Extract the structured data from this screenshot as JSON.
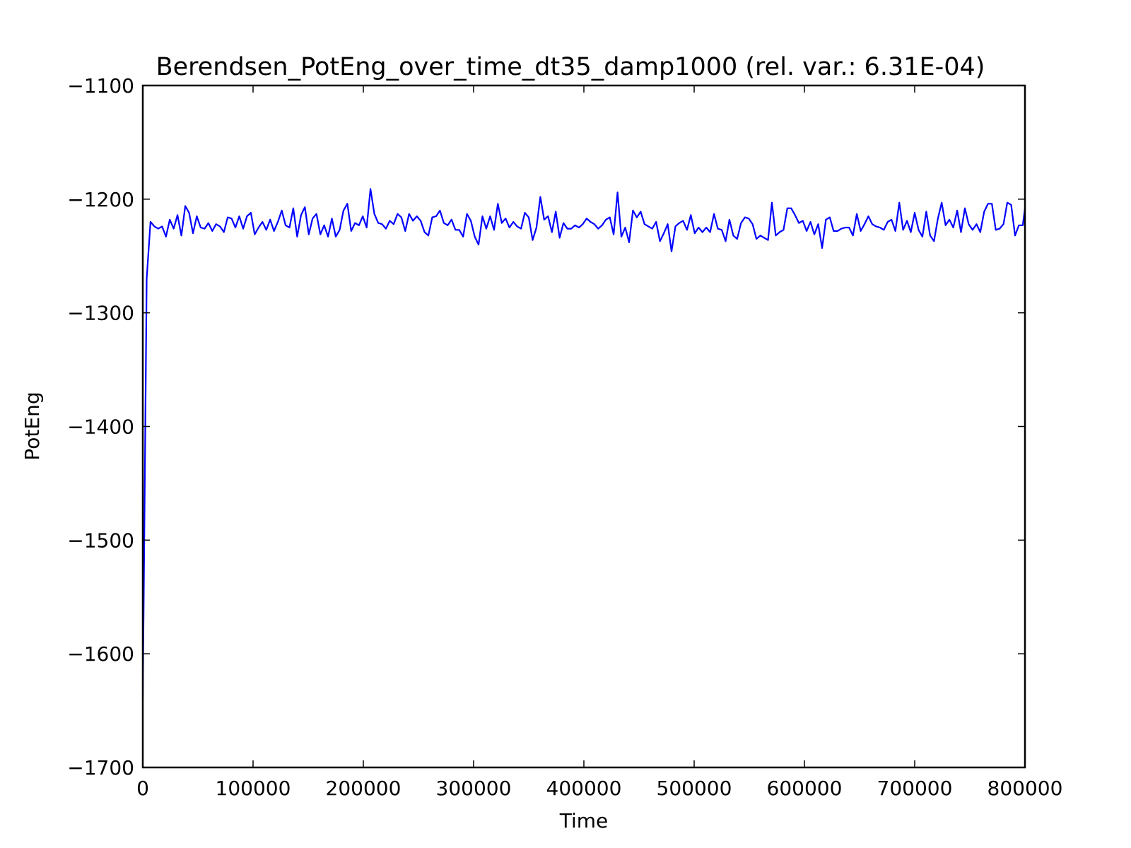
{
  "chart_data": {
    "type": "line",
    "title": "Berendsen_PotEng_over_time_dt35_damp1000 (rel. var.: 6.31E-04)",
    "xlabel": "Time",
    "ylabel": "PotEng",
    "xlim": [
      0,
      800000
    ],
    "ylim": [
      -1700,
      -1100
    ],
    "xticks": [
      0,
      100000,
      200000,
      300000,
      400000,
      500000,
      600000,
      700000,
      800000
    ],
    "xtick_labels": [
      "0",
      "100000",
      "200000",
      "300000",
      "400000",
      "500000",
      "600000",
      "700000",
      "800000"
    ],
    "yticks": [
      -1100,
      -1200,
      -1300,
      -1400,
      -1500,
      -1600,
      -1700
    ],
    "ytick_labels": [
      "−1100",
      "−1200",
      "−1300",
      "−1400",
      "−1500",
      "−1600",
      "−1700"
    ],
    "grid": false,
    "legend": "none",
    "series": [
      {
        "color": "#0000ff",
        "x_start": 0,
        "x_step": 3500,
        "values": [
          -1640,
          -1270,
          -1220,
          -1224,
          -1226,
          -1224,
          -1233,
          -1218,
          -1226,
          -1214,
          -1232,
          -1206,
          -1212,
          -1230,
          -1215,
          -1225,
          -1226,
          -1221,
          -1228,
          -1222,
          -1224,
          -1229,
          -1216,
          -1217,
          -1225,
          -1215,
          -1226,
          -1215,
          -1212,
          -1231,
          -1225,
          -1220,
          -1227,
          -1218,
          -1228,
          -1220,
          -1210,
          -1223,
          -1225,
          -1208,
          -1233,
          -1214,
          -1207,
          -1231,
          -1217,
          -1213,
          -1231,
          -1223,
          -1233,
          -1217,
          -1233,
          -1227,
          -1210,
          -1204,
          -1228,
          -1221,
          -1223,
          -1215,
          -1225,
          -1191,
          -1213,
          -1221,
          -1222,
          -1226,
          -1219,
          -1222,
          -1213,
          -1216,
          -1228,
          -1213,
          -1219,
          -1215,
          -1219,
          -1229,
          -1232,
          -1216,
          -1215,
          -1210,
          -1221,
          -1223,
          -1218,
          -1227,
          -1227,
          -1233,
          -1213,
          -1219,
          -1233,
          -1240,
          -1215,
          -1226,
          -1215,
          -1227,
          -1204,
          -1221,
          -1217,
          -1225,
          -1220,
          -1224,
          -1226,
          -1212,
          -1216,
          -1236,
          -1225,
          -1198,
          -1218,
          -1215,
          -1229,
          -1211,
          -1234,
          -1221,
          -1226,
          -1226,
          -1223,
          -1225,
          -1222,
          -1217,
          -1220,
          -1222,
          -1226,
          -1223,
          -1218,
          -1216,
          -1231,
          -1194,
          -1233,
          -1225,
          -1238,
          -1210,
          -1216,
          -1211,
          -1222,
          -1224,
          -1226,
          -1220,
          -1237,
          -1230,
          -1222,
          -1246,
          -1224,
          -1221,
          -1219,
          -1227,
          -1214,
          -1230,
          -1225,
          -1229,
          -1225,
          -1229,
          -1213,
          -1226,
          -1227,
          -1237,
          -1218,
          -1232,
          -1235,
          -1221,
          -1216,
          -1217,
          -1222,
          -1235,
          -1232,
          -1234,
          -1236,
          -1203,
          -1232,
          -1229,
          -1227,
          -1208,
          -1208,
          -1214,
          -1221,
          -1219,
          -1228,
          -1220,
          -1231,
          -1222,
          -1243,
          -1218,
          -1216,
          -1228,
          -1228,
          -1226,
          -1225,
          -1225,
          -1232,
          -1213,
          -1228,
          -1222,
          -1215,
          -1222,
          -1224,
          -1225,
          -1227,
          -1220,
          -1218,
          -1228,
          -1203,
          -1227,
          -1219,
          -1229,
          -1212,
          -1227,
          -1233,
          -1211,
          -1232,
          -1237,
          -1217,
          -1203,
          -1223,
          -1218,
          -1225,
          -1210,
          -1229,
          -1208,
          -1222,
          -1227,
          -1222,
          -1229,
          -1211,
          -1204,
          -1204,
          -1227,
          -1226,
          -1222,
          -1203,
          -1205,
          -1232,
          -1223,
          -1223,
          -1208
        ]
      }
    ]
  }
}
